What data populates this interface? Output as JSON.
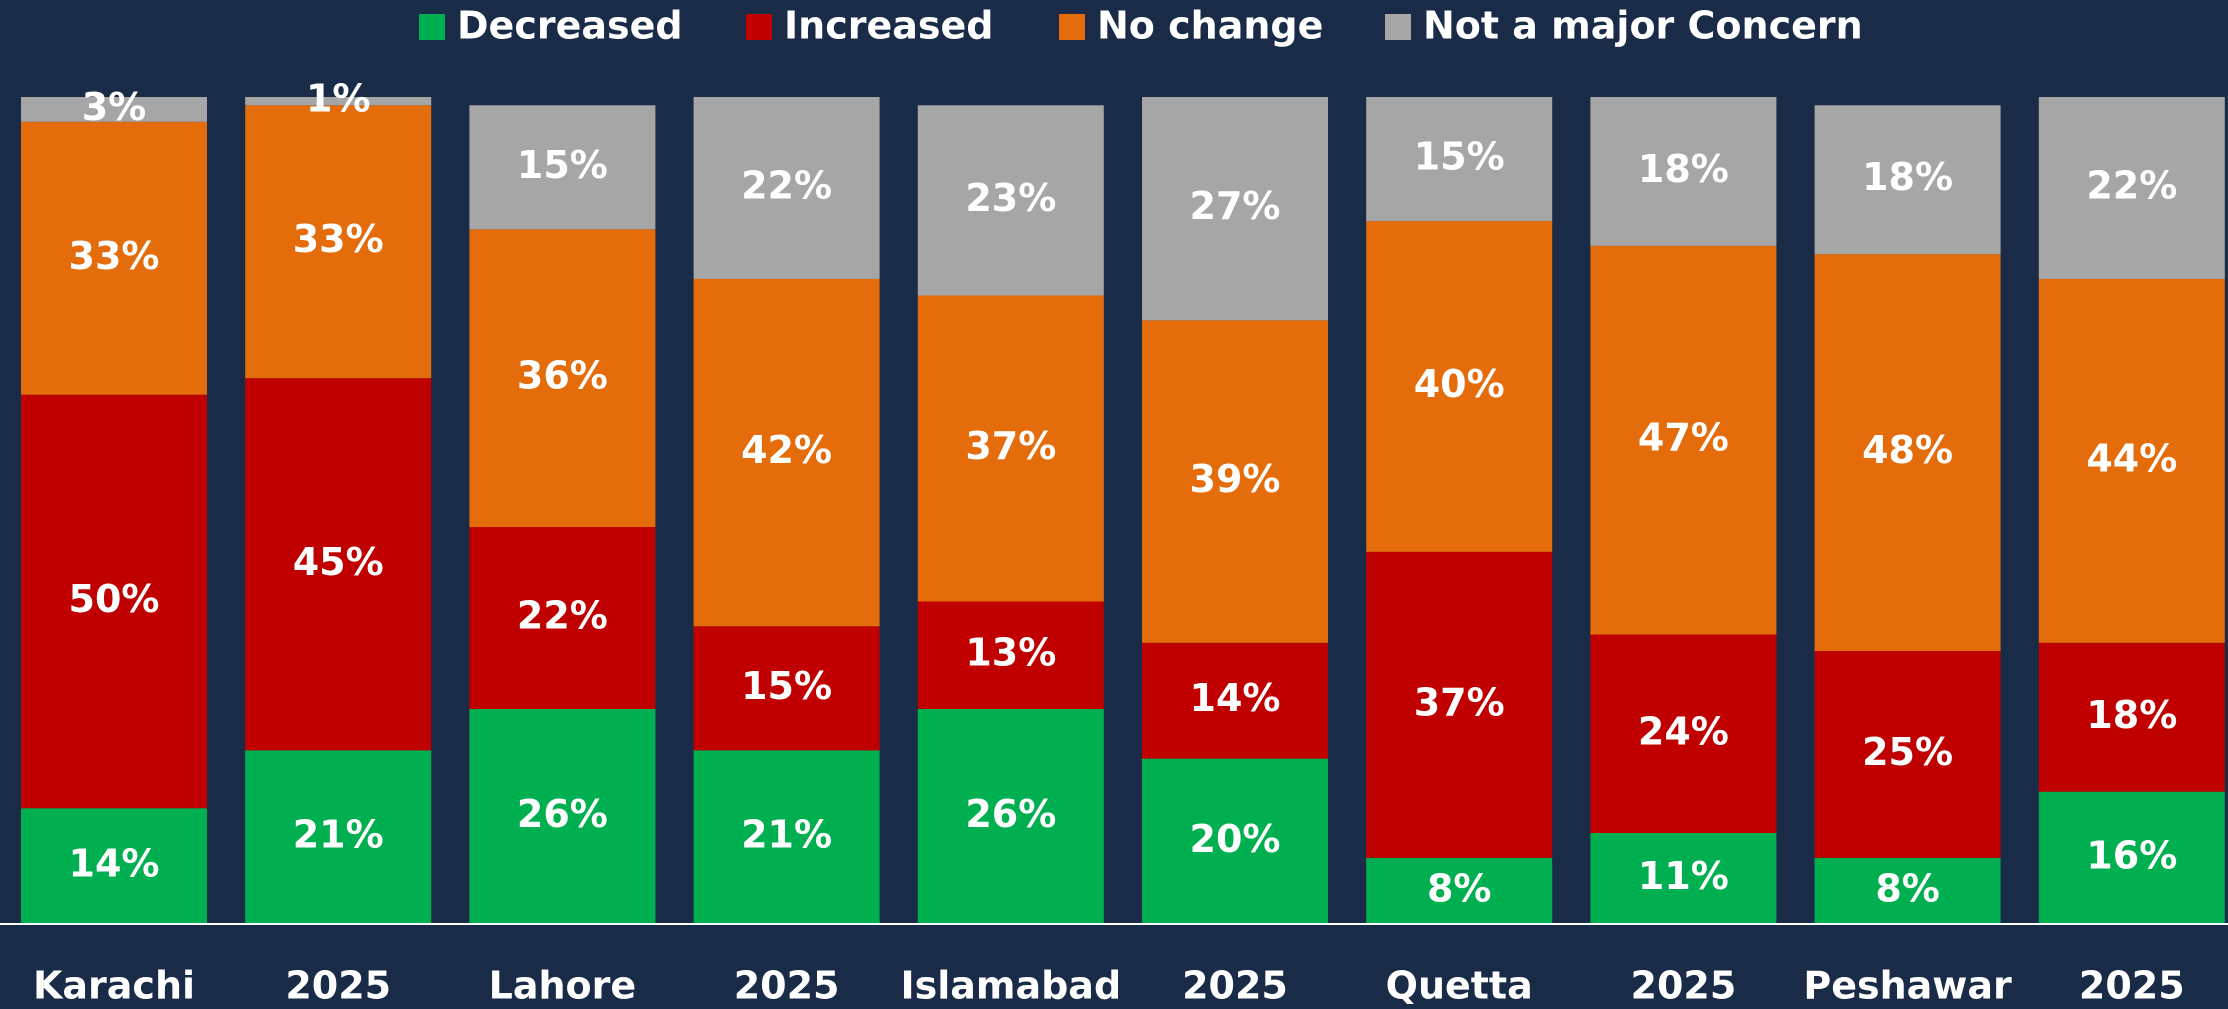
{
  "chart_data": {
    "type": "stacked_bar",
    "categories": [
      "Karachi",
      "2025",
      "Lahore",
      "2025",
      "Islamabad",
      "2025",
      "Quetta",
      "2025",
      "Peshawar",
      "2025"
    ],
    "series": [
      {
        "name": "Decreased",
        "color": "#00b050",
        "values": [
          14,
          21,
          26,
          21,
          26,
          20,
          8,
          11,
          8,
          16
        ],
        "value_labels": [
          "14%",
          "21%",
          "26%",
          "21%",
          "26%",
          "20%",
          "8%",
          "11%",
          "8%",
          "16%"
        ]
      },
      {
        "name": "Increased",
        "color": "#c00000",
        "values": [
          50,
          45,
          22,
          15,
          13,
          14,
          37,
          24,
          25,
          18
        ],
        "value_labels": [
          "50%",
          "45%",
          "22%",
          "15%",
          "13%",
          "14%",
          "37%",
          "24%",
          "25%",
          "18%"
        ]
      },
      {
        "name": "No change",
        "color": "#e46c0a",
        "values": [
          33,
          33,
          36,
          42,
          37,
          39,
          40,
          47,
          48,
          44
        ],
        "value_labels": [
          "33%",
          "33%",
          "36%",
          "42%",
          "37%",
          "39%",
          "40%",
          "47%",
          "48%",
          "44%"
        ]
      },
      {
        "name": "Not a major Concern",
        "color": "#a6a6a6",
        "values": [
          3,
          1,
          15,
          22,
          23,
          27,
          15,
          18,
          18,
          22
        ],
        "value_labels": [
          "3%",
          "1%",
          "15%",
          "22%",
          "23%",
          "27%",
          "15%",
          "18%",
          "18%",
          "22%"
        ]
      }
    ],
    "ylim": [
      0,
      100
    ],
    "legend": "top"
  }
}
